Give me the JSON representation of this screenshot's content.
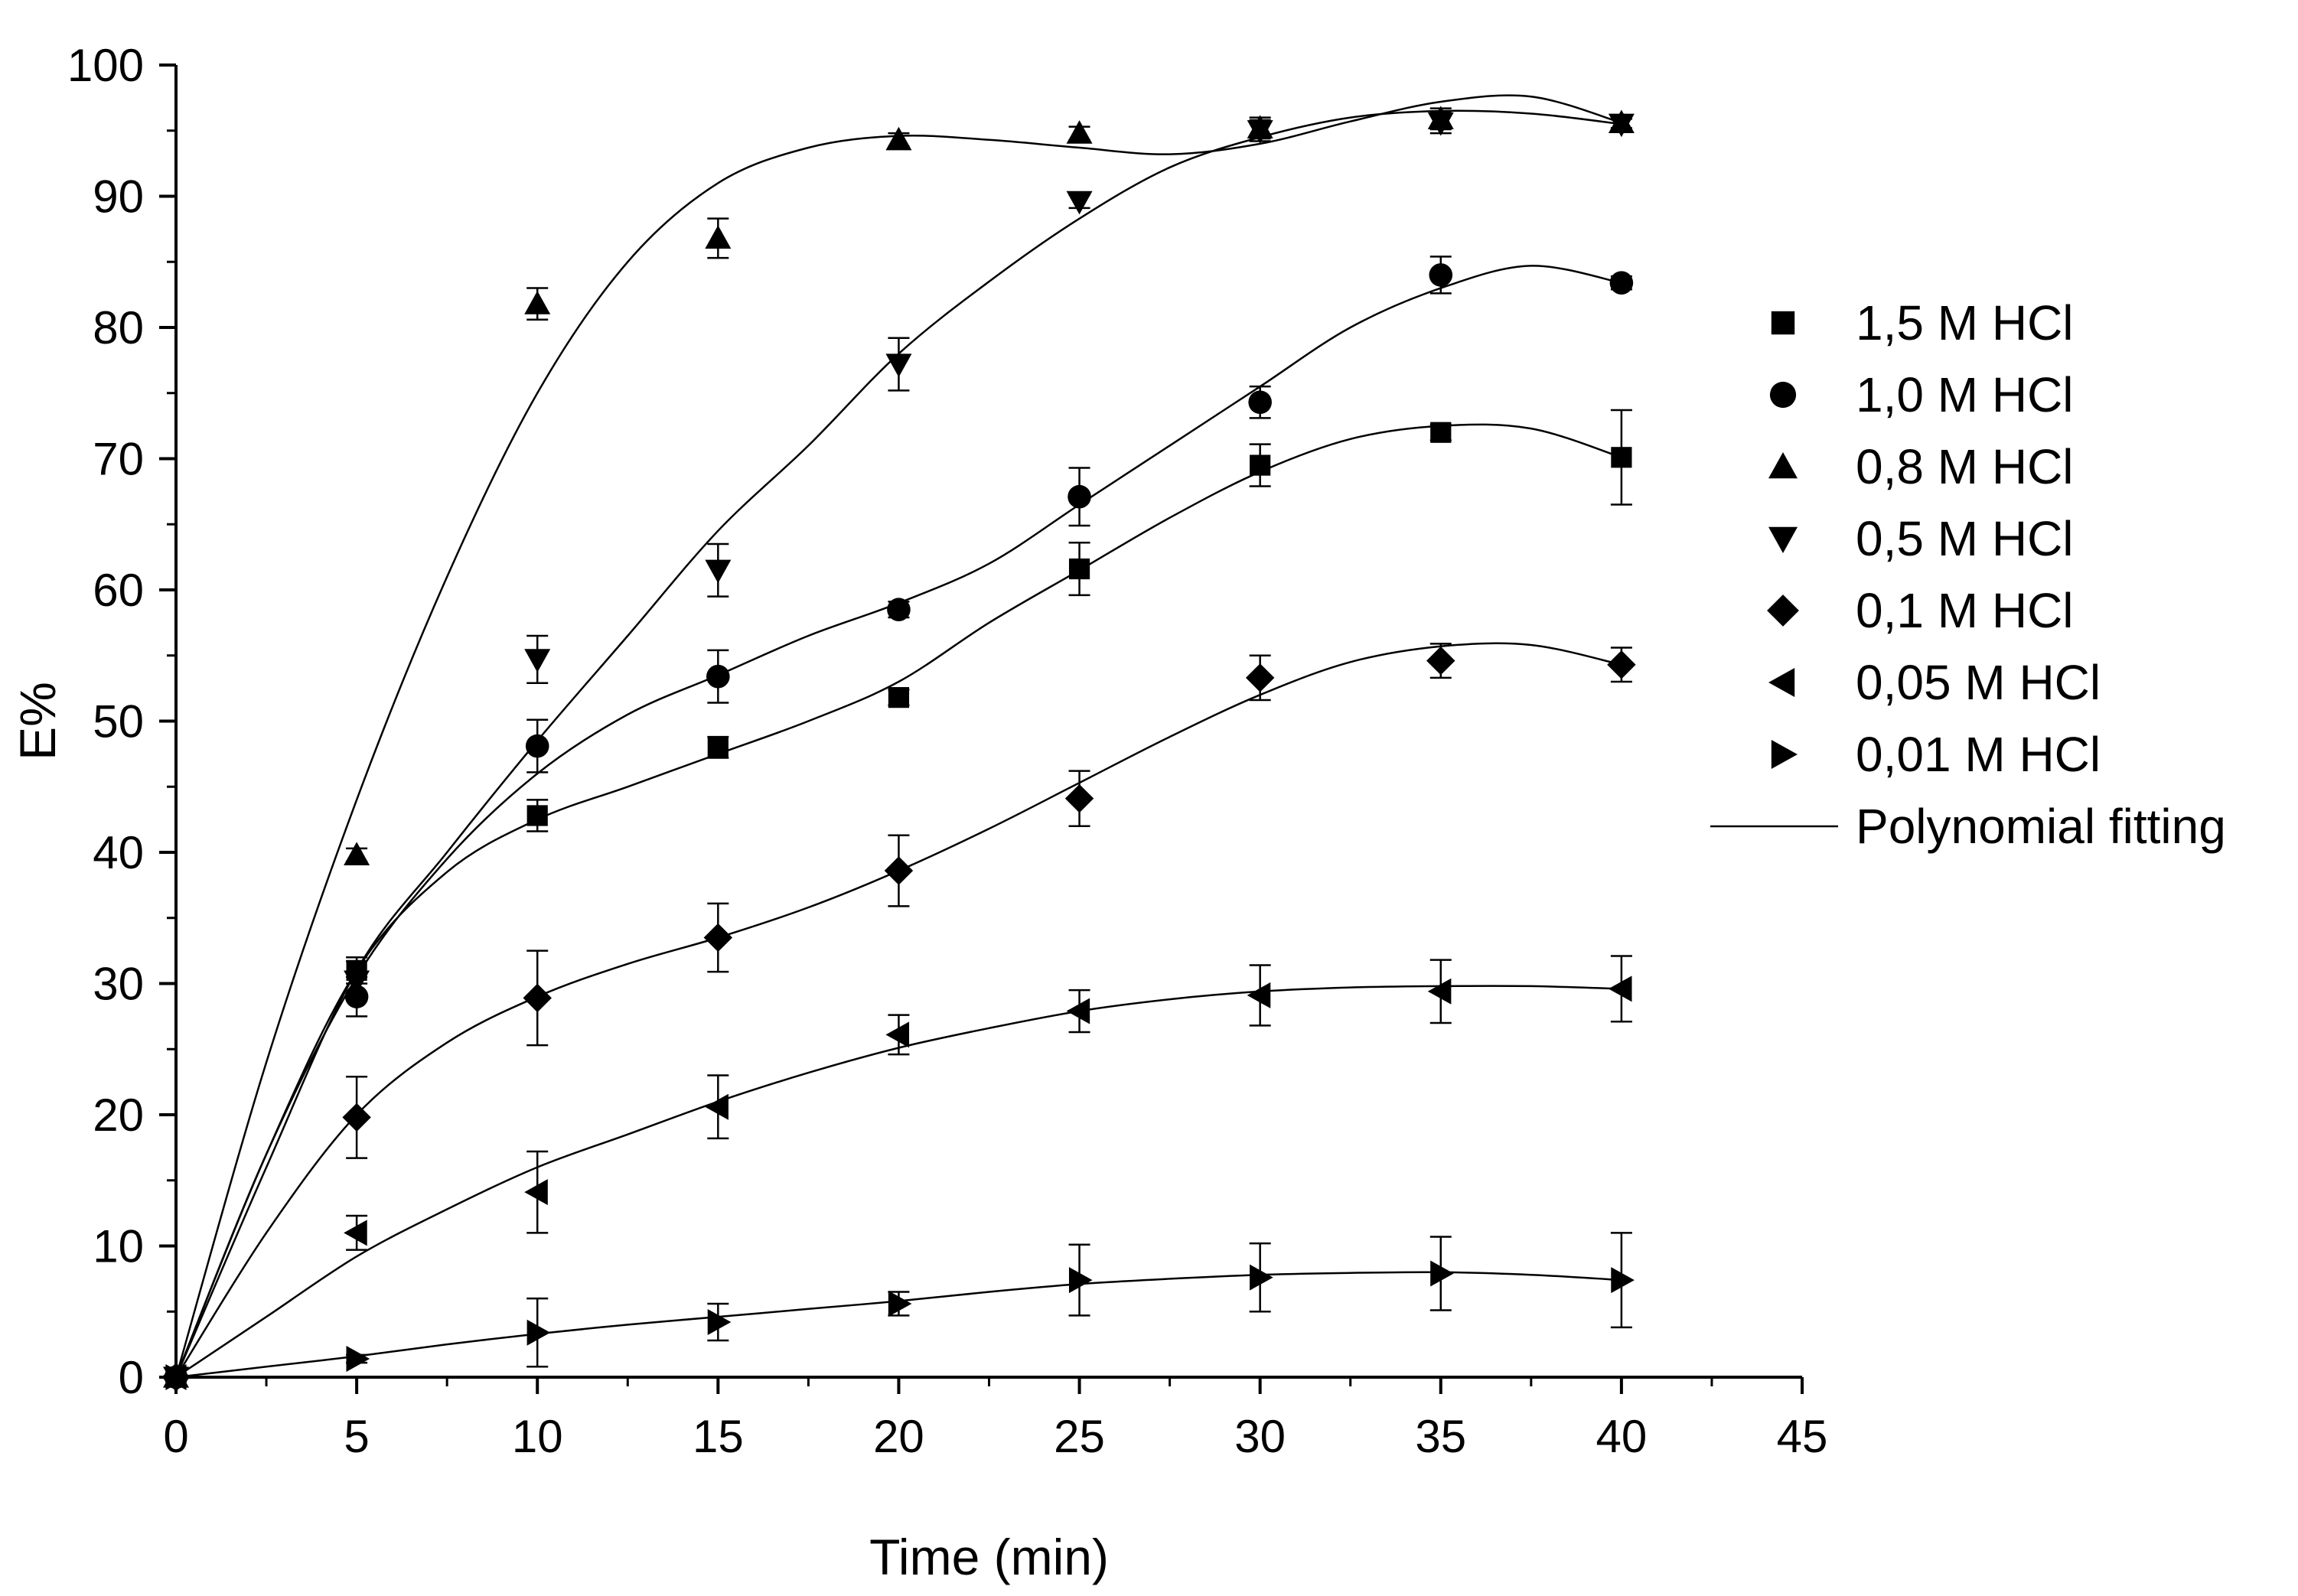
{
  "chart_data": {
    "type": "scatter",
    "title": "",
    "xlabel": "Time (min)",
    "ylabel": "E%",
    "xlim": [
      0,
      45
    ],
    "ylim": [
      0,
      100
    ],
    "xticks": [
      0,
      5,
      10,
      15,
      20,
      25,
      30,
      35,
      40,
      45
    ],
    "yticks": [
      0,
      10,
      20,
      30,
      40,
      50,
      60,
      70,
      80,
      90,
      100
    ],
    "grid": false,
    "legend_position": "right",
    "x": [
      0,
      5,
      10,
      15,
      20,
      25,
      30,
      35,
      40
    ],
    "series": [
      {
        "name": "1,5 M HCl",
        "marker": "square",
        "values": [
          0,
          31.0,
          42.8,
          48.0,
          51.8,
          61.6,
          69.5,
          72.0,
          70.1
        ],
        "errors": [
          0,
          1.0,
          1.2,
          0.8,
          0.6,
          2.0,
          1.6,
          0.6,
          3.6
        ]
      },
      {
        "name": "1,0 M HCl",
        "marker": "circle",
        "values": [
          0,
          29.0,
          48.1,
          53.4,
          58.5,
          67.1,
          74.3,
          84.0,
          83.4
        ],
        "errors": [
          0,
          1.5,
          2.0,
          2.0,
          0.6,
          2.2,
          1.2,
          1.4,
          0.5
        ]
      },
      {
        "name": "0,8 M HCl",
        "marker": "triangle-up",
        "values": [
          0,
          39.8,
          81.8,
          86.8,
          94.3,
          94.8,
          95.2,
          95.9,
          95.6
        ],
        "errors": [
          0,
          0.5,
          1.2,
          1.5,
          0.5,
          0.5,
          0.8,
          0.8,
          0.4
        ]
      },
      {
        "name": "0,5 M HCl",
        "marker": "triangle-down",
        "values": [
          0,
          30.2,
          54.7,
          61.5,
          77.2,
          89.6,
          95.0,
          95.6,
          95.5
        ],
        "errors": [
          0,
          1.5,
          1.8,
          2.0,
          2.0,
          0.5,
          0.8,
          0.8,
          0.4
        ]
      },
      {
        "name": "0,1 M HCl",
        "marker": "diamond",
        "values": [
          0,
          19.8,
          28.9,
          33.5,
          38.6,
          44.1,
          53.3,
          54.6,
          54.3
        ],
        "errors": [
          0,
          3.1,
          3.6,
          2.6,
          2.7,
          2.1,
          1.7,
          1.3,
          1.3
        ]
      },
      {
        "name": "0,05 M HCl",
        "marker": "triangle-left",
        "values": [
          0,
          11.0,
          14.1,
          20.6,
          26.1,
          27.9,
          29.1,
          29.4,
          29.6
        ],
        "errors": [
          0,
          1.3,
          3.1,
          2.4,
          1.5,
          1.6,
          2.3,
          2.4,
          2.5
        ]
      },
      {
        "name": "0,01 M HCl",
        "marker": "triangle-right",
        "values": [
          0,
          1.4,
          3.4,
          4.2,
          5.6,
          7.4,
          7.6,
          7.9,
          7.4
        ],
        "errors": [
          0,
          0.3,
          2.6,
          1.4,
          0.9,
          2.7,
          2.6,
          2.8,
          3.6
        ]
      }
    ],
    "fit_curves": [
      {
        "name": "1,5 M HCl",
        "x": [
          0,
          2.5,
          5,
          7.5,
          10,
          12.5,
          15,
          17.5,
          20,
          22.5,
          25,
          27.5,
          30,
          32.5,
          35,
          37.5,
          40
        ],
        "y": [
          0,
          17,
          31,
          38.5,
          42.5,
          45,
          47.5,
          50,
          53,
          57.5,
          61.5,
          65.5,
          69,
          71.5,
          72.5,
          72.3,
          70.1
        ]
      },
      {
        "name": "1,0 M HCl",
        "x": [
          0,
          2.5,
          5,
          7.5,
          10,
          12.5,
          15,
          17.5,
          20,
          22.5,
          25,
          27.5,
          30,
          32.5,
          35,
          37.5,
          40
        ],
        "y": [
          0,
          17,
          30.5,
          39.5,
          46,
          50.5,
          53.5,
          56.5,
          59,
          62,
          66.5,
          71,
          75.5,
          80,
          83,
          84.7,
          83.4
        ]
      },
      {
        "name": "0,8 M HCl",
        "x": [
          0,
          2.5,
          5,
          7.5,
          10,
          12.5,
          15,
          17.5,
          20,
          22.5,
          25,
          27.5,
          30,
          32.5,
          35,
          37.5,
          40
        ],
        "y": [
          0,
          24,
          44,
          61,
          75,
          85,
          91,
          93.7,
          94.6,
          94.3,
          93.7,
          93.2,
          94,
          95.7,
          97.2,
          97.6,
          95.6
        ]
      },
      {
        "name": "0,5 M HCl",
        "x": [
          0,
          2.5,
          5,
          7.5,
          10,
          12.5,
          15,
          17.5,
          20,
          22.5,
          25,
          27.5,
          30,
          32.5,
          35,
          37.5,
          40
        ],
        "y": [
          0,
          16,
          31,
          40,
          48.5,
          56.5,
          64.5,
          71,
          78,
          83.5,
          88.3,
          92.2,
          94.5,
          96,
          96.5,
          96.3,
          95.5
        ]
      },
      {
        "name": "0,1 M HCl",
        "x": [
          0,
          2.5,
          5,
          7.5,
          10,
          12.5,
          15,
          17.5,
          20,
          22.5,
          25,
          27.5,
          30,
          32.5,
          35,
          37.5,
          40
        ],
        "y": [
          0,
          11,
          20,
          25.5,
          29,
          31.5,
          33.5,
          35.8,
          38.6,
          41.8,
          45.3,
          48.8,
          52,
          54.5,
          55.7,
          55.8,
          54.3
        ]
      },
      {
        "name": "0,05 M HCl",
        "x": [
          0,
          2.5,
          5,
          7.5,
          10,
          12.5,
          15,
          17.5,
          20,
          22.5,
          25,
          27.5,
          30,
          32.5,
          35,
          37.5,
          40
        ],
        "y": [
          0,
          4.6,
          9.2,
          12.8,
          16,
          18.5,
          21,
          23.2,
          25.1,
          26.6,
          27.9,
          28.8,
          29.4,
          29.7,
          29.8,
          29.8,
          29.6
        ]
      },
      {
        "name": "0,01 M HCl",
        "x": [
          0,
          2.5,
          5,
          7.5,
          10,
          12.5,
          15,
          17.5,
          20,
          22.5,
          25,
          27.5,
          30,
          32.5,
          35,
          37.5,
          40
        ],
        "y": [
          0,
          0.8,
          1.6,
          2.5,
          3.3,
          4.0,
          4.6,
          5.2,
          5.8,
          6.5,
          7.1,
          7.5,
          7.8,
          7.95,
          8.0,
          7.8,
          7.4
        ]
      }
    ],
    "fit_label": "Polynomial fitting"
  }
}
